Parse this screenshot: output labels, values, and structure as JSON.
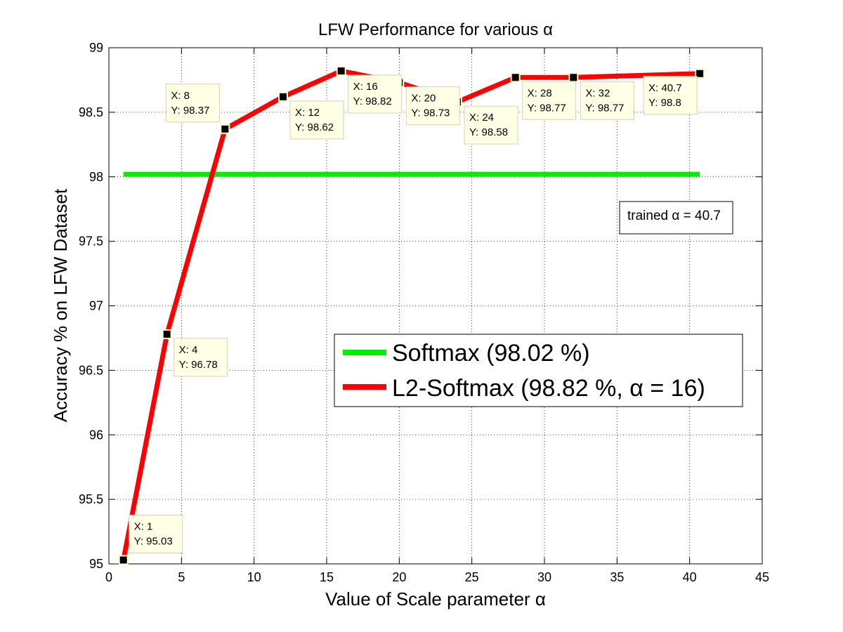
{
  "chart_data": {
    "type": "line",
    "title": "LFW Performance for various α",
    "xlabel": "Value of Scale parameter α",
    "ylabel": "Accuracy  % on LFW Dataset",
    "xlim": [
      0,
      45
    ],
    "ylim": [
      95,
      99
    ],
    "xticks": [
      0,
      5,
      10,
      15,
      20,
      25,
      30,
      35,
      40,
      45
    ],
    "yticks": [
      95,
      95.5,
      96,
      96.5,
      97,
      97.5,
      98,
      98.5,
      99
    ],
    "xtick_labels": [
      "0",
      "5",
      "10",
      "15",
      "20",
      "25",
      "30",
      "35",
      "40",
      "45"
    ],
    "ytick_labels": [
      "95",
      "95.5",
      "96",
      "96.5",
      "97",
      "97.5",
      "98",
      "98.5",
      "99"
    ],
    "grid": true,
    "legend_position": "lower-right",
    "series": [
      {
        "name": "Softmax (98.02 %)",
        "color": "#00ee00",
        "x": [
          1,
          40.7
        ],
        "y": [
          98.02,
          98.02
        ]
      },
      {
        "name": "L2-Softmax (98.82 %, α = 16)",
        "color": "#ff0000",
        "marker_color": "#000000",
        "x": [
          1,
          4,
          8,
          12,
          16,
          20,
          24,
          28,
          32,
          40.7
        ],
        "y": [
          95.03,
          96.78,
          98.37,
          98.62,
          98.82,
          98.73,
          98.58,
          98.77,
          98.77,
          98.8
        ]
      }
    ],
    "datatips": [
      {
        "x_label": "X: 1",
        "y_label": "Y: 95.03",
        "x": 1,
        "y": 95.03,
        "side": "right-above"
      },
      {
        "x_label": "X: 4",
        "y_label": "Y: 96.78",
        "x": 4,
        "y": 96.78,
        "side": "right-below"
      },
      {
        "x_label": "X: 8",
        "y_label": "Y: 98.37",
        "x": 8,
        "y": 98.37,
        "side": "left-above"
      },
      {
        "x_label": "X: 12",
        "y_label": "Y: 98.62",
        "x": 12,
        "y": 98.62,
        "side": "right-below"
      },
      {
        "x_label": "X: 16",
        "y_label": "Y: 98.82",
        "x": 16,
        "y": 98.82,
        "side": "right-below"
      },
      {
        "x_label": "X: 20",
        "y_label": "Y: 98.73",
        "x": 20,
        "y": 98.73,
        "side": "right-below"
      },
      {
        "x_label": "X: 24",
        "y_label": "Y: 98.58",
        "x": 24,
        "y": 98.58,
        "side": "right-below"
      },
      {
        "x_label": "X: 28",
        "y_label": "Y: 98.77",
        "x": 28,
        "y": 98.77,
        "side": "right-below"
      },
      {
        "x_label": "X: 32",
        "y_label": "Y: 98.77",
        "x": 32,
        "y": 98.77,
        "side": "right-below"
      },
      {
        "x_label": "X: 40.7",
        "y_label": "Y: 98.8",
        "x": 40.7,
        "y": 98.8,
        "side": "left-below"
      }
    ],
    "annotation": "trained α = 40.7"
  }
}
